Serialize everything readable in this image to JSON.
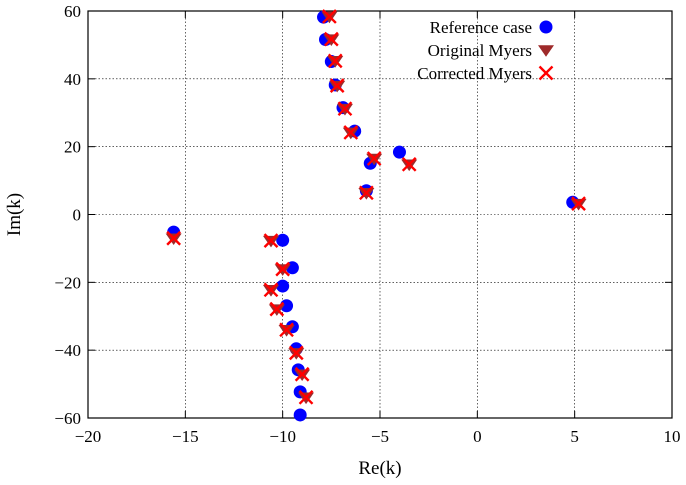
{
  "chart_data": {
    "type": "scatter",
    "xlabel": "Re(k)",
    "ylabel": "Im(k)",
    "xlim": [
      -20,
      10
    ],
    "ylim": [
      -60,
      60
    ],
    "xticks": [
      -20,
      -15,
      -10,
      -5,
      0,
      5,
      10
    ],
    "yticks": [
      -60,
      -40,
      -20,
      0,
      20,
      40,
      60
    ],
    "x_tick_labels": [
      "−20",
      "−15",
      "−10",
      "−5",
      "0",
      "5",
      "10"
    ],
    "y_tick_labels": [
      "−60",
      "−40",
      "−20",
      "0",
      "20",
      "40",
      "60"
    ],
    "grid": true,
    "legend_position": "top-right",
    "series": [
      {
        "name": "Reference case",
        "marker": "circle",
        "color": "#0000ff",
        "points": [
          [
            -7.9,
            58.2
          ],
          [
            -7.8,
            51.6
          ],
          [
            -7.5,
            45.1
          ],
          [
            -7.3,
            38.2
          ],
          [
            -6.9,
            31.5
          ],
          [
            -6.3,
            24.6
          ],
          [
            -5.5,
            15.1
          ],
          [
            -5.7,
            7.0
          ],
          [
            -4.0,
            18.4
          ],
          [
            4.9,
            3.6
          ],
          [
            -15.6,
            -5.2
          ],
          [
            -10.0,
            -7.6
          ],
          [
            -9.5,
            -15.7
          ],
          [
            -10.0,
            -21.1
          ],
          [
            -9.8,
            -26.9
          ],
          [
            -9.5,
            -33.1
          ],
          [
            -9.3,
            -39.6
          ],
          [
            -9.2,
            -45.8
          ],
          [
            -9.1,
            -52.3
          ],
          [
            -9.1,
            -59.1
          ]
        ]
      },
      {
        "name": "Original Myers",
        "marker": "triangle-down",
        "color": "#9e2a2a",
        "points": [
          [
            -7.6,
            58.4
          ],
          [
            -7.5,
            51.7
          ],
          [
            -7.3,
            45.3
          ],
          [
            -7.2,
            38.0
          ],
          [
            -6.8,
            31.2
          ],
          [
            -6.5,
            24.2
          ],
          [
            -5.3,
            16.5
          ],
          [
            -5.7,
            6.4
          ],
          [
            -3.5,
            14.8
          ],
          [
            5.2,
            3.2
          ],
          [
            -15.6,
            -7.0
          ],
          [
            -10.6,
            -7.7
          ],
          [
            -10.0,
            -16.1
          ],
          [
            -10.6,
            -22.2
          ],
          [
            -10.3,
            -27.9
          ],
          [
            -9.8,
            -34.0
          ],
          [
            -9.3,
            -40.8
          ],
          [
            -9.0,
            -47.1
          ],
          [
            -8.8,
            -53.9
          ]
        ]
      },
      {
        "name": "Corrected Myers",
        "marker": "x",
        "color": "#ff0000",
        "points": [
          [
            -7.6,
            58.4
          ],
          [
            -7.5,
            51.7
          ],
          [
            -7.3,
            45.3
          ],
          [
            -7.2,
            38.0
          ],
          [
            -6.8,
            31.2
          ],
          [
            -6.5,
            24.2
          ],
          [
            -5.3,
            16.5
          ],
          [
            -5.7,
            6.4
          ],
          [
            -3.5,
            14.8
          ],
          [
            5.2,
            3.2
          ],
          [
            -15.6,
            -7.0
          ],
          [
            -10.6,
            -7.7
          ],
          [
            -10.0,
            -16.1
          ],
          [
            -10.6,
            -22.2
          ],
          [
            -10.3,
            -27.9
          ],
          [
            -9.8,
            -34.0
          ],
          [
            -9.3,
            -40.8
          ],
          [
            -9.0,
            -47.1
          ],
          [
            -8.8,
            -53.9
          ]
        ]
      }
    ]
  }
}
